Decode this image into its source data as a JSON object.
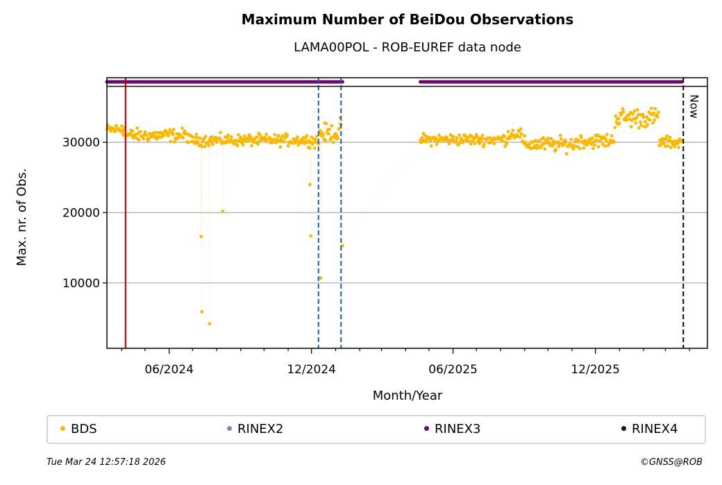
{
  "colors": {
    "bds": "#fbb800",
    "rinex2": "#8383c0",
    "rinex3": "#6a0a6e",
    "rinex4": "#2a0a28",
    "red_line": "#cc0000",
    "blue_line": "#1060b0",
    "grid": "#b0b0b0"
  },
  "chart_data": {
    "type": "scatter",
    "title": "Maximum Number of BeiDou Observations",
    "subtitle": "LAMA00POL - ROB-EUREF data node",
    "xlabel": "Month/Year",
    "ylabel": "Max. nr. of Obs.",
    "xlim": [
      "2024-03-13",
      "2026-04-24"
    ],
    "ylim": [
      700,
      38000
    ],
    "grid": "y-major",
    "x_major_ticks": [
      {
        "date": "2024-06-01",
        "label": "06/2024"
      },
      {
        "date": "2024-12-01",
        "label": "12/2024"
      },
      {
        "date": "2025-06-01",
        "label": "06/2025"
      },
      {
        "date": "2025-12-01",
        "label": "12/2025"
      }
    ],
    "x_minor_ticks": [
      "2024-04-01",
      "2024-05-01",
      "2024-07-01",
      "2024-08-01",
      "2024-09-01",
      "2024-10-01",
      "2024-11-01",
      "2025-01-01",
      "2025-02-01",
      "2025-03-01",
      "2025-04-01",
      "2025-05-01",
      "2025-07-01",
      "2025-08-01",
      "2025-09-01",
      "2025-10-01",
      "2025-11-01",
      "2026-01-01",
      "2026-02-01",
      "2026-03-01",
      "2026-04-01"
    ],
    "y_ticks": [
      {
        "value": 10000,
        "label": "10000"
      },
      {
        "value": 20000,
        "label": "20000"
      },
      {
        "value": 30000,
        "label": "30000"
      }
    ],
    "vertical_lines": [
      {
        "date": "2024-04-06",
        "style": "solid",
        "color": "red"
      },
      {
        "date": "2024-12-10",
        "style": "dashed",
        "color": "blue"
      },
      {
        "date": "2025-01-08",
        "style": "dashed",
        "color": "blue"
      },
      {
        "date": "2026-03-24",
        "style": "dashed",
        "color": "black",
        "label": "Now"
      }
    ],
    "rinex_strip": [
      {
        "series": "RINEX3",
        "start": "2024-03-13",
        "end": "2025-01-10"
      },
      {
        "series": "RINEX3",
        "start": "2025-04-20",
        "end": "2026-03-22"
      }
    ],
    "series": [
      {
        "name": "BDS",
        "segments": [
          {
            "start": "2024-03-13",
            "end": "2024-04-05",
            "mean": 31800,
            "spread": 700
          },
          {
            "start": "2024-04-06",
            "end": "2024-06-25",
            "mean": 31000,
            "spread": 800
          },
          {
            "start": "2024-06-26",
            "end": "2024-11-30",
            "mean": 30300,
            "spread": 700
          },
          {
            "start": "2024-12-01",
            "end": "2024-12-10",
            "mean": 30200,
            "spread": 800
          },
          {
            "start": "2024-12-11",
            "end": "2025-01-08",
            "mean": 31300,
            "spread": 1100
          },
          {
            "start": "2025-04-20",
            "end": "2025-08-10",
            "mean": 30400,
            "spread": 700
          },
          {
            "start": "2025-08-11",
            "end": "2025-08-28",
            "mean": 31200,
            "spread": 700
          },
          {
            "start": "2025-08-29",
            "end": "2025-11-05",
            "mean": 29700,
            "spread": 900
          },
          {
            "start": "2025-11-06",
            "end": "2025-12-25",
            "mean": 30200,
            "spread": 900
          },
          {
            "start": "2025-12-26",
            "end": "2026-02-20",
            "mean": 33500,
            "spread": 1200
          },
          {
            "start": "2026-02-21",
            "end": "2026-03-22",
            "mean": 30000,
            "spread": 700
          }
        ],
        "outliers": [
          {
            "date": "2024-07-12",
            "value": 16600
          },
          {
            "date": "2024-07-13",
            "value": 5900
          },
          {
            "date": "2024-07-23",
            "value": 4200
          },
          {
            "date": "2024-08-09",
            "value": 20200
          },
          {
            "date": "2024-11-29",
            "value": 24000
          },
          {
            "date": "2024-11-30",
            "value": 16700
          },
          {
            "date": "2024-12-13",
            "value": 10700
          },
          {
            "date": "2025-01-10",
            "value": 15300
          },
          {
            "date": "2025-01-07",
            "value": 33500
          },
          {
            "date": "2024-04-01",
            "value": 32300
          }
        ]
      }
    ],
    "legend": {
      "placement": "bottom",
      "entries": [
        "BDS",
        "RINEX2",
        "RINEX3",
        "RINEX4"
      ]
    }
  },
  "footer": {
    "timestamp": "Tue Mar 24 12:57:18 2026",
    "credit": "©GNSS@ROB"
  }
}
